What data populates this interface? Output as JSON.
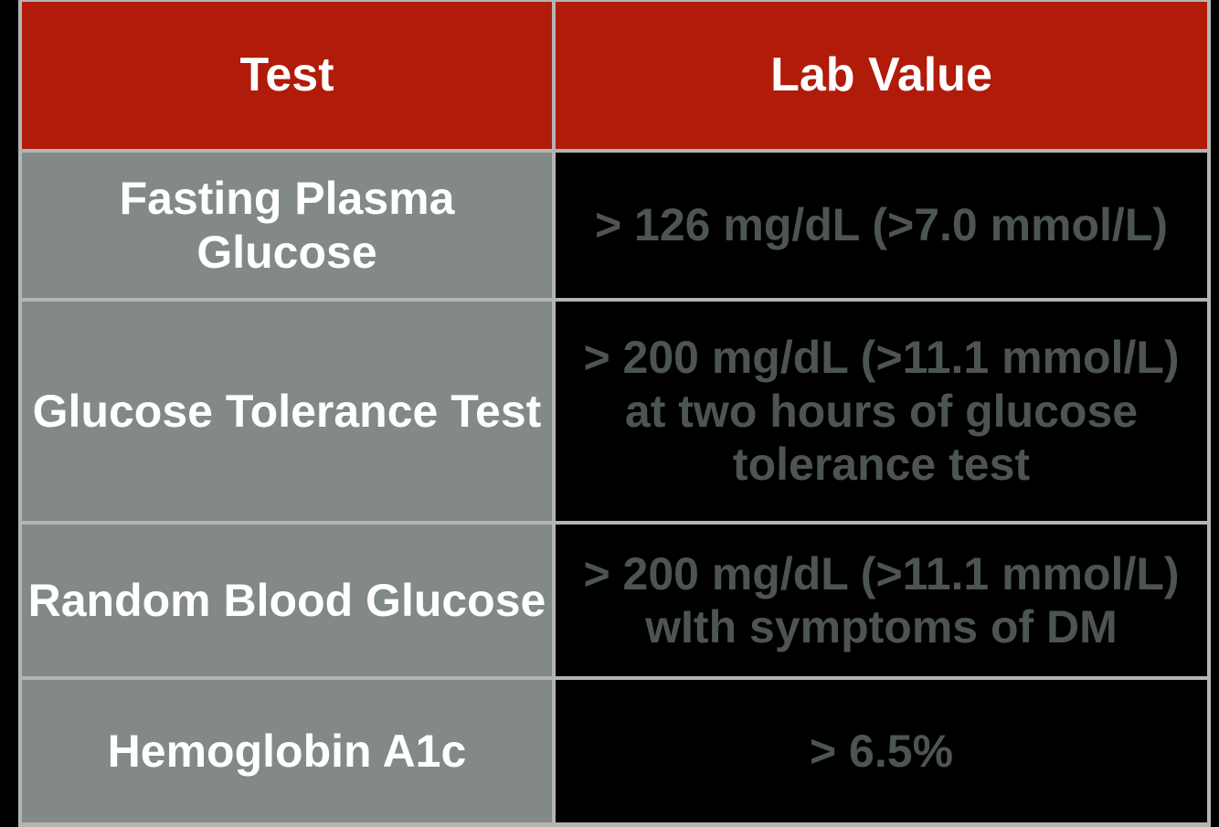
{
  "colors": {
    "page_background": "#000000",
    "header_background": "#b01b0a",
    "header_text": "#ffffff",
    "test_cell_background": "#828986",
    "test_cell_text": "#ffffff",
    "value_cell_background": "#000000",
    "value_cell_text": "#4d5552",
    "border": "#b3b5b4"
  },
  "chart_data": {
    "type": "table",
    "columns": [
      "Test",
      "Lab Value"
    ],
    "rows": [
      {
        "test": "Fasting Plasma\nGlucose",
        "lab_value": "> 126 mg/dL (>7.0 mmol/L)"
      },
      {
        "test": "Glucose Tolerance Test",
        "lab_value": "> 200 mg/dL (>11.1 mmol/L)\nat two hours of glucose\ntolerance test"
      },
      {
        "test": "Random Blood Glucose",
        "lab_value": "> 200 mg/dL (>11.1 mmol/L)\nwIth symptoms of DM"
      },
      {
        "test": "Hemoglobin A1c",
        "lab_value": "> 6.5%"
      }
    ]
  }
}
